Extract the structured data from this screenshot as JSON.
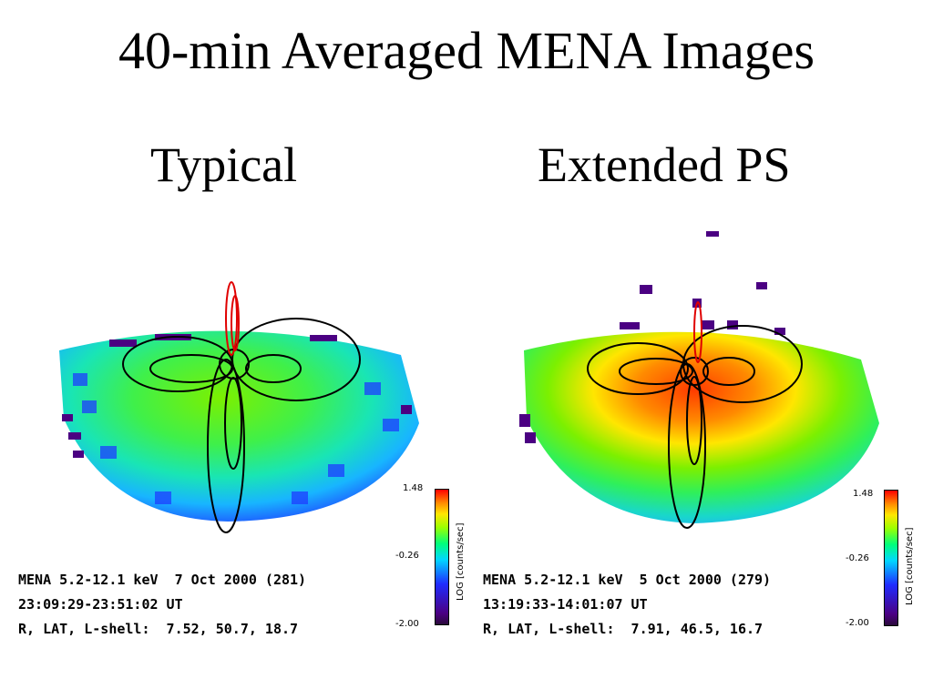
{
  "title": "40-min Averaged MENA Images",
  "panels": [
    {
      "subtitle": "Typical",
      "colorbar": {
        "max": "1.48",
        "mid": "-0.26",
        "min": "-2.00",
        "label": "LOG [counts/sec]"
      },
      "info": {
        "line1": "MENA 5.2-12.1 keV  7 Oct 2000 (281)",
        "line2": "23:09:29-23:51:02 UT",
        "line3": "R, LAT, L-shell:  7.52, 50.7, 18.7"
      }
    },
    {
      "subtitle": "Extended PS",
      "colorbar": {
        "max": "1.48",
        "mid": "-0.26",
        "min": "-2.00",
        "label": "LOG [counts/sec]"
      },
      "info": {
        "line1": "MENA 5.2-12.1 keV  5 Oct 2000 (279)",
        "line2": "13:19:33-14:01:07 UT",
        "line3": "R, LAT, L-shell:  7.91, 46.5, 16.7"
      }
    }
  ]
}
